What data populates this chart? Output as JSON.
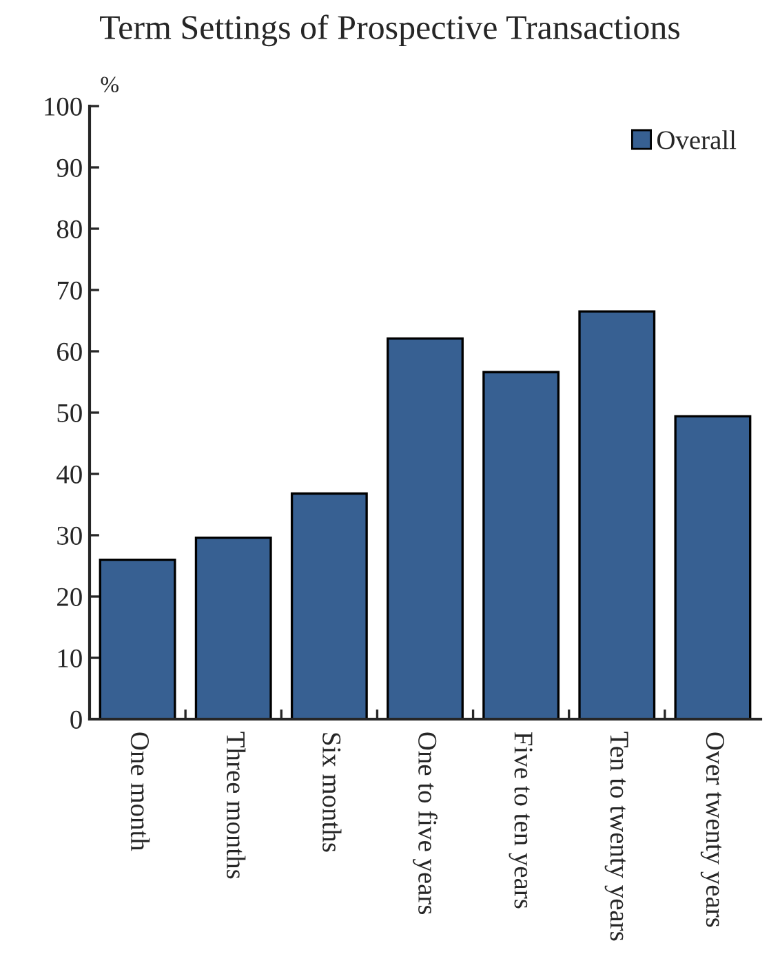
{
  "chart_data": {
    "type": "bar",
    "title": "Term Settings of Prospective Transactions",
    "ylabel": "%",
    "categories": [
      "One month",
      "Three months",
      "Six months",
      "One to five years",
      "Five to ten years",
      "Ten to twenty years",
      "Over twenty years"
    ],
    "series": [
      {
        "name": "Overall",
        "color": "#376092",
        "values": [
          26.0,
          29.6,
          36.8,
          62.1,
          56.6,
          66.5,
          49.4
        ]
      }
    ],
    "ylim": [
      0,
      100
    ],
    "yticks": [
      0,
      10,
      20,
      30,
      40,
      50,
      60,
      70,
      80,
      90,
      100
    ],
    "grid": false,
    "legend": "top right"
  }
}
